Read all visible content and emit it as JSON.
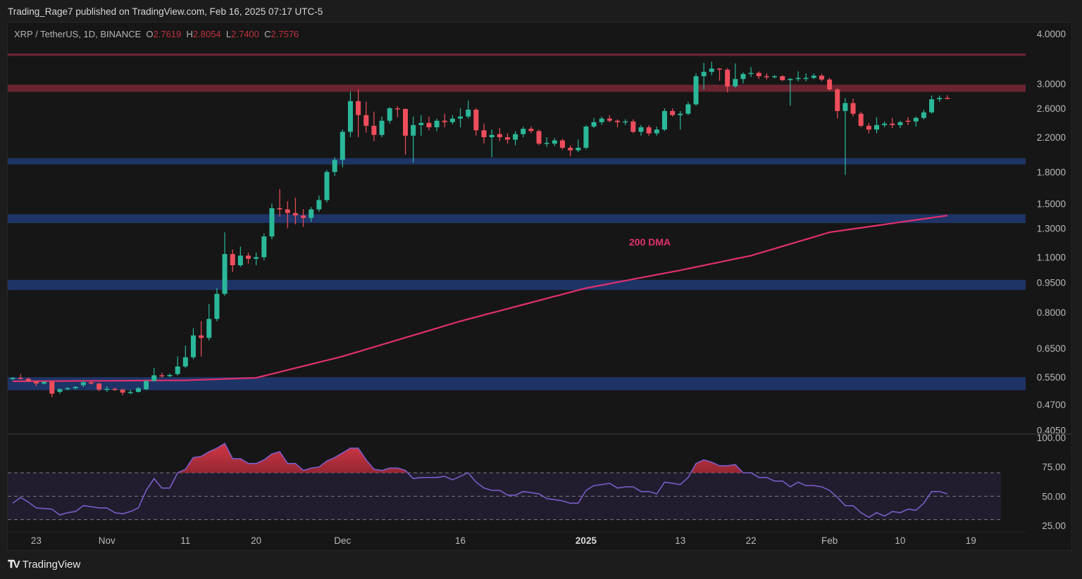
{
  "publisher_line": "Trading_Rage7 published on TradingView.com, Feb 16, 2025 07:17 UTC-5",
  "legend": {
    "symbol": "XRP / TetherUS, 1D, BINANCE",
    "o_label": "O",
    "o": "2.7619",
    "h_label": "H",
    "h": "2.8054",
    "l_label": "L",
    "l": "2.7400",
    "c_label": "C",
    "c": "2.7576"
  },
  "footer": {
    "brand": "TradingView",
    "logo_icon": "tradingview-logo-icon"
  },
  "colors": {
    "up": "#2bb89a",
    "down": "#ee4e5c",
    "ma": "#e0306e",
    "rsi": "#7e5fd0",
    "resistance": "#6a2430",
    "support": "#1f3466",
    "value_text": "#c2313f"
  },
  "chart_data": [
    {
      "type": "candlestick",
      "scale": "log",
      "ylim": [
        0.405,
        4.0
      ],
      "y_ticks": [
        "4.0000",
        "3.0000",
        "2.6000",
        "2.2000",
        "1.8000",
        "1.5000",
        "1.3000",
        "1.1000",
        "0.9500",
        "0.8000",
        "0.6500",
        "0.5500",
        "0.4700",
        "0.4050"
      ],
      "x_ticks": [
        {
          "label": "23",
          "date": "2024-10-23"
        },
        {
          "label": "Nov",
          "date": "2024-11-01"
        },
        {
          "label": "11",
          "date": "2024-11-11"
        },
        {
          "label": "20",
          "date": "2024-11-20"
        },
        {
          "label": "Dec",
          "date": "2024-12-01"
        },
        {
          "label": "16",
          "date": "2024-12-16"
        },
        {
          "label": "2025",
          "date": "2025-01-01"
        },
        {
          "label": "13",
          "date": "2025-01-13"
        },
        {
          "label": "22",
          "date": "2025-01-22"
        },
        {
          "label": "Feb",
          "date": "2025-02-01"
        },
        {
          "label": "10",
          "date": "2025-02-10"
        },
        {
          "label": "19",
          "date": "2025-02-19"
        }
      ],
      "zones": [
        {
          "kind": "resistance",
          "low": 3.52,
          "high": 3.57
        },
        {
          "kind": "resistance",
          "low": 2.86,
          "high": 2.98
        },
        {
          "kind": "support",
          "low": 1.88,
          "high": 1.95
        },
        {
          "kind": "support",
          "low": 1.34,
          "high": 1.41
        },
        {
          "kind": "support",
          "low": 0.91,
          "high": 0.965
        },
        {
          "kind": "support",
          "low": 0.51,
          "high": 0.55
        }
      ],
      "ma": {
        "label": "200 DMA",
        "points": [
          [
            "2024-10-20",
            0.537
          ],
          [
            "2024-11-11",
            0.54
          ],
          [
            "2024-11-20",
            0.548
          ],
          [
            "2024-12-01",
            0.62
          ],
          [
            "2024-12-16",
            0.76
          ],
          [
            "2025-01-01",
            0.92
          ],
          [
            "2025-01-13",
            1.02
          ],
          [
            "2025-01-22",
            1.11
          ],
          [
            "2025-02-01",
            1.27
          ],
          [
            "2025-02-16",
            1.4
          ]
        ]
      },
      "candles": [
        [
          "2024-10-20",
          0.544,
          0.55,
          0.541,
          0.548
        ],
        [
          "2024-10-21",
          0.548,
          0.56,
          0.543,
          0.545
        ],
        [
          "2024-10-22",
          0.545,
          0.548,
          0.535,
          0.537
        ],
        [
          "2024-10-23",
          0.537,
          0.54,
          0.522,
          0.53
        ],
        [
          "2024-10-24",
          0.53,
          0.538,
          0.527,
          0.535
        ],
        [
          "2024-10-25",
          0.536,
          0.538,
          0.49,
          0.5
        ],
        [
          "2024-10-26",
          0.505,
          0.516,
          0.5,
          0.513
        ],
        [
          "2024-10-27",
          0.513,
          0.519,
          0.51,
          0.516
        ],
        [
          "2024-10-28",
          0.516,
          0.522,
          0.512,
          0.52
        ],
        [
          "2024-10-29",
          0.525,
          0.54,
          0.52,
          0.534
        ],
        [
          "2024-10-30",
          0.534,
          0.537,
          0.527,
          0.53
        ],
        [
          "2024-10-31",
          0.53,
          0.532,
          0.507,
          0.512
        ],
        [
          "2024-11-01",
          0.512,
          0.522,
          0.505,
          0.514
        ],
        [
          "2024-11-02",
          0.514,
          0.518,
          0.508,
          0.512
        ],
        [
          "2024-11-03",
          0.512,
          0.514,
          0.495,
          0.503
        ],
        [
          "2024-11-04",
          0.503,
          0.512,
          0.498,
          0.505
        ],
        [
          "2024-11-05",
          0.505,
          0.52,
          0.503,
          0.516
        ],
        [
          "2024-11-06",
          0.513,
          0.54,
          0.51,
          0.538
        ],
        [
          "2024-11-07",
          0.538,
          0.58,
          0.536,
          0.556
        ],
        [
          "2024-11-08",
          0.556,
          0.565,
          0.548,
          0.553
        ],
        [
          "2024-11-09",
          0.553,
          0.562,
          0.55,
          0.557
        ],
        [
          "2024-11-10",
          0.56,
          0.62,
          0.555,
          0.585
        ],
        [
          "2024-11-11",
          0.585,
          0.66,
          0.58,
          0.617
        ],
        [
          "2024-11-12",
          0.617,
          0.73,
          0.61,
          0.7
        ],
        [
          "2024-11-13",
          0.7,
          0.76,
          0.62,
          0.69
        ],
        [
          "2024-11-14",
          0.69,
          0.84,
          0.68,
          0.77
        ],
        [
          "2024-11-15",
          0.77,
          0.92,
          0.76,
          0.89
        ],
        [
          "2024-11-16",
          0.89,
          1.27,
          0.88,
          1.12
        ],
        [
          "2024-11-17",
          1.12,
          1.15,
          1.01,
          1.05
        ],
        [
          "2024-11-18",
          1.05,
          1.17,
          1.04,
          1.11
        ],
        [
          "2024-11-19",
          1.11,
          1.13,
          1.06,
          1.09
        ],
        [
          "2024-11-20",
          1.09,
          1.13,
          1.05,
          1.1
        ],
        [
          "2024-11-21",
          1.1,
          1.26,
          1.08,
          1.24
        ],
        [
          "2024-11-22",
          1.24,
          1.5,
          1.22,
          1.46
        ],
        [
          "2024-11-23",
          1.46,
          1.63,
          1.39,
          1.45
        ],
        [
          "2024-11-24",
          1.45,
          1.52,
          1.3,
          1.42
        ],
        [
          "2024-11-25",
          1.42,
          1.55,
          1.33,
          1.4
        ],
        [
          "2024-11-26",
          1.4,
          1.45,
          1.31,
          1.38
        ],
        [
          "2024-11-27",
          1.38,
          1.47,
          1.35,
          1.45
        ],
        [
          "2024-11-28",
          1.45,
          1.57,
          1.43,
          1.53
        ],
        [
          "2024-11-29",
          1.53,
          1.82,
          1.51,
          1.8
        ],
        [
          "2024-11-30",
          1.8,
          1.96,
          1.76,
          1.93
        ],
        [
          "2024-12-01",
          1.93,
          2.3,
          1.85,
          2.27
        ],
        [
          "2024-12-02",
          2.27,
          2.86,
          2.2,
          2.71
        ],
        [
          "2024-12-03",
          2.71,
          2.9,
          2.2,
          2.5
        ],
        [
          "2024-12-04",
          2.5,
          2.7,
          2.26,
          2.35
        ],
        [
          "2024-12-05",
          2.35,
          2.55,
          2.15,
          2.23
        ],
        [
          "2024-12-06",
          2.23,
          2.48,
          2.2,
          2.42
        ],
        [
          "2024-12-07",
          2.42,
          2.62,
          2.38,
          2.6
        ],
        [
          "2024-12-08",
          2.6,
          2.63,
          2.47,
          2.59
        ],
        [
          "2024-12-09",
          2.59,
          2.6,
          1.99,
          2.22
        ],
        [
          "2024-12-10",
          2.22,
          2.48,
          1.9,
          2.36
        ],
        [
          "2024-12-11",
          2.36,
          2.5,
          2.22,
          2.39
        ],
        [
          "2024-12-12",
          2.39,
          2.48,
          2.29,
          2.33
        ],
        [
          "2024-12-13",
          2.33,
          2.45,
          2.28,
          2.42
        ],
        [
          "2024-12-14",
          2.42,
          2.52,
          2.33,
          2.4
        ],
        [
          "2024-12-15",
          2.4,
          2.5,
          2.37,
          2.45
        ],
        [
          "2024-12-16",
          2.45,
          2.6,
          2.33,
          2.48
        ],
        [
          "2024-12-17",
          2.48,
          2.72,
          2.45,
          2.58
        ],
        [
          "2024-12-18",
          2.58,
          2.6,
          2.22,
          2.29
        ],
        [
          "2024-12-19",
          2.29,
          2.38,
          2.12,
          2.2
        ],
        [
          "2024-12-20",
          2.2,
          2.3,
          1.96,
          2.23
        ],
        [
          "2024-12-21",
          2.24,
          2.32,
          2.15,
          2.2
        ],
        [
          "2024-12-22",
          2.2,
          2.25,
          2.12,
          2.17
        ],
        [
          "2024-12-23",
          2.17,
          2.28,
          2.1,
          2.24
        ],
        [
          "2024-12-24",
          2.24,
          2.34,
          2.2,
          2.31
        ],
        [
          "2024-12-25",
          2.31,
          2.34,
          2.25,
          2.28
        ],
        [
          "2024-12-26",
          2.28,
          2.3,
          2.1,
          2.12
        ],
        [
          "2024-12-27",
          2.12,
          2.2,
          2.08,
          2.13
        ],
        [
          "2024-12-28",
          2.12,
          2.19,
          2.09,
          2.16
        ],
        [
          "2024-12-29",
          2.16,
          2.18,
          2.05,
          2.07
        ],
        [
          "2024-12-30",
          2.07,
          2.1,
          1.97,
          2.04
        ],
        [
          "2024-12-31",
          2.04,
          2.17,
          2.02,
          2.07
        ],
        [
          "2025-01-01",
          2.07,
          2.36,
          2.05,
          2.34
        ],
        [
          "2025-01-02",
          2.34,
          2.46,
          2.32,
          2.4
        ],
        [
          "2025-01-03",
          2.4,
          2.48,
          2.36,
          2.45
        ],
        [
          "2025-01-04",
          2.45,
          2.5,
          2.4,
          2.42
        ],
        [
          "2025-01-05",
          2.42,
          2.44,
          2.33,
          2.4
        ],
        [
          "2025-01-06",
          2.4,
          2.44,
          2.36,
          2.41
        ],
        [
          "2025-01-07",
          2.41,
          2.44,
          2.25,
          2.27
        ],
        [
          "2025-01-08",
          2.27,
          2.36,
          2.22,
          2.33
        ],
        [
          "2025-01-09",
          2.33,
          2.36,
          2.22,
          2.25
        ],
        [
          "2025-01-10",
          2.25,
          2.34,
          2.22,
          2.3
        ],
        [
          "2025-01-11",
          2.3,
          2.6,
          2.28,
          2.56
        ],
        [
          "2025-01-12",
          2.56,
          2.6,
          2.48,
          2.5
        ],
        [
          "2025-01-13",
          2.5,
          2.56,
          2.3,
          2.52
        ],
        [
          "2025-01-14",
          2.52,
          2.7,
          2.5,
          2.66
        ],
        [
          "2025-01-15",
          2.66,
          3.18,
          2.64,
          3.13
        ],
        [
          "2025-01-16",
          3.13,
          3.38,
          2.9,
          3.21
        ],
        [
          "2025-01-17",
          3.21,
          3.4,
          3.15,
          3.27
        ],
        [
          "2025-01-18",
          3.27,
          3.28,
          3.05,
          3.25
        ],
        [
          "2025-01-19",
          3.25,
          3.28,
          2.85,
          2.95
        ],
        [
          "2025-01-20",
          2.95,
          3.37,
          2.93,
          3.08
        ],
        [
          "2025-01-21",
          3.08,
          3.2,
          3.0,
          3.17
        ],
        [
          "2025-01-22",
          3.17,
          3.3,
          3.12,
          3.19
        ],
        [
          "2025-01-23",
          3.19,
          3.22,
          3.08,
          3.13
        ],
        [
          "2025-01-24",
          3.13,
          3.18,
          3.07,
          3.12
        ],
        [
          "2025-01-25",
          3.12,
          3.15,
          3.09,
          3.13
        ],
        [
          "2025-01-26",
          3.13,
          3.15,
          3.04,
          3.06
        ],
        [
          "2025-01-27",
          3.06,
          3.1,
          2.64,
          3.08
        ],
        [
          "2025-01-28",
          3.08,
          3.22,
          3.04,
          3.1
        ],
        [
          "2025-01-29",
          3.1,
          3.18,
          3.04,
          3.1
        ],
        [
          "2025-01-30",
          3.1,
          3.18,
          3.08,
          3.14
        ],
        [
          "2025-01-31",
          3.14,
          3.17,
          3.04,
          3.07
        ],
        [
          "2025-02-01",
          3.07,
          3.1,
          2.88,
          2.9
        ],
        [
          "2025-02-02",
          2.9,
          2.92,
          2.45,
          2.56
        ],
        [
          "2025-02-03",
          2.56,
          2.76,
          1.77,
          2.68
        ],
        [
          "2025-02-04",
          2.68,
          2.75,
          2.48,
          2.52
        ],
        [
          "2025-02-05",
          2.52,
          2.55,
          2.33,
          2.35
        ],
        [
          "2025-02-06",
          2.35,
          2.39,
          2.25,
          2.3
        ],
        [
          "2025-02-07",
          2.3,
          2.47,
          2.25,
          2.36
        ],
        [
          "2025-02-08",
          2.36,
          2.41,
          2.33,
          2.38
        ],
        [
          "2025-02-09",
          2.38,
          2.46,
          2.32,
          2.36
        ],
        [
          "2025-02-10",
          2.36,
          2.42,
          2.32,
          2.4
        ],
        [
          "2025-02-11",
          2.42,
          2.47,
          2.36,
          2.41
        ],
        [
          "2025-02-12",
          2.41,
          2.48,
          2.34,
          2.46
        ],
        [
          "2025-02-13",
          2.46,
          2.58,
          2.44,
          2.54
        ],
        [
          "2025-02-14",
          2.54,
          2.8,
          2.52,
          2.74
        ],
        [
          "2025-02-15",
          2.74,
          2.8,
          2.7,
          2.76
        ],
        [
          "2025-02-16",
          2.7619,
          2.8054,
          2.74,
          2.7576
        ]
      ]
    },
    {
      "type": "line",
      "ylim": [
        25,
        100
      ],
      "y_ticks": [
        "100.00",
        "75.00",
        "50.00",
        "25.00"
      ],
      "bands": {
        "upper": 70,
        "middle": 50,
        "lower": 30
      },
      "values": [
        44,
        49,
        45,
        40,
        39.5,
        39,
        34,
        36,
        37,
        42,
        41,
        40,
        40,
        36,
        35,
        37,
        40,
        55,
        65,
        57,
        57,
        70,
        73,
        83,
        84,
        88,
        91,
        95,
        82,
        82,
        78,
        78,
        81,
        86,
        88,
        78,
        78,
        72,
        74,
        75,
        80,
        83,
        87,
        91,
        91,
        81,
        73,
        72,
        74,
        74,
        72,
        65,
        66,
        66,
        66,
        67,
        64,
        67,
        70,
        62,
        57,
        55,
        55,
        51,
        51,
        54,
        53,
        52,
        48,
        47,
        46,
        44,
        44,
        55,
        59,
        60,
        61,
        57,
        58,
        58,
        54,
        54,
        52,
        62,
        61,
        60,
        66,
        78,
        81,
        79,
        76,
        76,
        77,
        70,
        70,
        66,
        66,
        63,
        63,
        58,
        62,
        59,
        59,
        58,
        55,
        49,
        42,
        42,
        36,
        32,
        36,
        33,
        37,
        36,
        39,
        38,
        44,
        54,
        54,
        52
      ]
    }
  ]
}
